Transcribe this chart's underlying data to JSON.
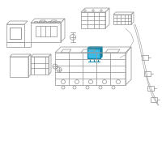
{
  "background_color": "#ffffff",
  "line_color": "#999999",
  "highlight_color": "#1a8aaa",
  "highlight_light": "#3abbe8",
  "highlight_dark": "#0a5a75",
  "figsize": [
    2.0,
    2.0
  ],
  "dpi": 100
}
